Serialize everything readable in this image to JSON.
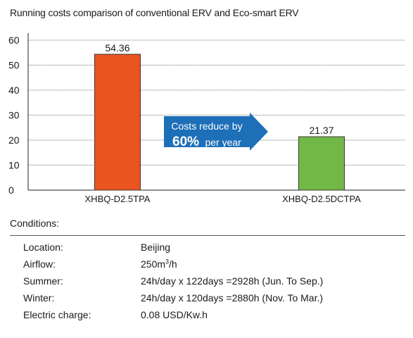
{
  "title": "Running costs comparison of conventional ERV and Eco-smart ERV",
  "chart_data": {
    "type": "bar",
    "categories": [
      "XHBQ-D2.5TPA",
      "XHBQ-D2.5DCTPA"
    ],
    "values": [
      54.36,
      21.37
    ],
    "value_labels": [
      "54.36",
      "21.37"
    ],
    "colors": [
      "#e9541f",
      "#72b846"
    ],
    "ylim": [
      0,
      60
    ],
    "yticks": [
      0,
      10,
      20,
      30,
      40,
      50,
      60
    ],
    "grid": "dotted horizontal",
    "annotation": {
      "line1": "Costs reduce by",
      "highlight": "60%",
      "line2": "per year",
      "color": "#1d6fb8"
    }
  },
  "conditions": {
    "heading": "Conditions:",
    "rows": [
      {
        "key": "Location:",
        "value": "Beijing"
      },
      {
        "key": "Airflow:",
        "value_main": "250m",
        "value_sup": "3",
        "value_tail": "/h"
      },
      {
        "key": "Summer:",
        "value": "24h/day x 122days =2928h (Jun. To Sep.)"
      },
      {
        "key": "Winter:",
        "value": "24h/day x 120days =2880h (Nov. To Mar.)"
      },
      {
        "key": "Electric charge:",
        "value": "0.08 USD/Kw.h"
      }
    ]
  }
}
